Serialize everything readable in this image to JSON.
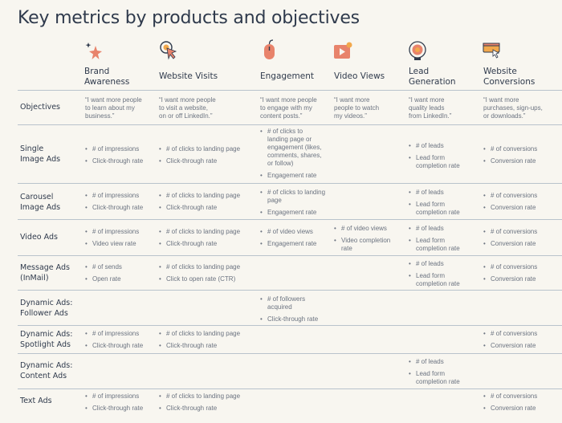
{
  "title": "Key metrics by products and objectives",
  "colors": {
    "text_dark": "#2f3a4c",
    "text_muted": "#6b7380",
    "icon_coral": "#e8836b",
    "icon_orange": "#f2a84c",
    "rule": "#b9c3cc",
    "background": "#f8f6f0"
  },
  "columns": [
    {
      "label": "Brand\nAwareness",
      "icon": "star-sparkle-icon"
    },
    {
      "label": "Website Visits",
      "icon": "cursor-click-icon"
    },
    {
      "label": "Engagement",
      "icon": "mouse-icon"
    },
    {
      "label": "Video Views",
      "icon": "video-play-icon"
    },
    {
      "label": "Lead\nGeneration",
      "icon": "target-icon"
    },
    {
      "label": "Website\nConversions",
      "icon": "browser-cursor-icon"
    }
  ],
  "objectives_row": {
    "label": "Objectives",
    "quotes": [
      "“I want more people\nto learn about my\nbusiness.”",
      "“I want more people\nto visit a website,\non or off LinkedIn.”",
      "“I want more people\nto engage with my\ncontent posts.”",
      "“I want more\npeople to watch\nmy videos.”",
      "“I want more\nquality leads\nfrom LinkedIn.”",
      "“I want more\npurchases, sign-ups,\nor downloads.”"
    ]
  },
  "rows": [
    {
      "label": "Single\nImage Ads",
      "cells": [
        [
          "# of impressions",
          "Click-through rate"
        ],
        [
          "# of clicks to landing page",
          "Click-through rate"
        ],
        [
          "# of clicks to\nlanding page or\nengagement (likes,\ncomments, shares,\nor follow)",
          "Engagement rate"
        ],
        [],
        [
          "# of leads",
          "Lead form\ncompletion rate"
        ],
        [
          "# of conversions",
          "Conversion rate"
        ]
      ]
    },
    {
      "label": "Carousel\nImage Ads",
      "cells": [
        [
          "# of impressions",
          "Click-through rate"
        ],
        [
          "# of clicks to landing page",
          "Click-through rate"
        ],
        [
          "# of clicks to landing\npage",
          "Engagement rate"
        ],
        [],
        [
          "# of leads",
          "Lead form\ncompletion rate"
        ],
        [
          "# of conversions",
          "Conversion rate"
        ]
      ]
    },
    {
      "label": "Video Ads",
      "cells": [
        [
          "# of impressions",
          "Video view rate"
        ],
        [
          "# of clicks to landing page",
          "Click-through rate"
        ],
        [
          "# of video views",
          "Engagement rate"
        ],
        [
          "# of video views",
          "Video completion\nrate"
        ],
        [
          "# of leads",
          "Lead form\ncompletion rate"
        ],
        [
          "# of conversions",
          "Conversion rate"
        ]
      ]
    },
    {
      "label": "Message Ads\n(InMail)",
      "cells": [
        [
          "# of sends",
          "Open rate"
        ],
        [
          "# of clicks to landing page",
          "Click to open rate (CTR)"
        ],
        [],
        [],
        [
          "# of leads",
          "Lead form\ncompletion rate"
        ],
        [
          "# of conversions",
          "Conversion rate"
        ]
      ]
    },
    {
      "label": "Dynamic Ads:\nFollower Ads",
      "cells": [
        [],
        [],
        [
          "# of followers\nacquired",
          "Click-through rate"
        ],
        [],
        [],
        []
      ]
    },
    {
      "label": "Dynamic Ads:\nSpotlight Ads",
      "cells": [
        [
          "# of impressions",
          "Click-through rate"
        ],
        [
          "# of clicks to landing page",
          "Click-through rate"
        ],
        [],
        [],
        [],
        [
          "# of conversions",
          "Conversion rate"
        ]
      ]
    },
    {
      "label": "Dynamic Ads:\nContent Ads",
      "cells": [
        [],
        [],
        [],
        [],
        [
          "# of leads",
          "Lead form\ncompletion rate"
        ],
        []
      ]
    },
    {
      "label": "Text Ads",
      "cells": [
        [
          "# of impressions",
          "Click-through rate"
        ],
        [
          "# of clicks to landing page",
          "Click-through rate"
        ],
        [],
        [],
        [],
        [
          "# of conversions",
          "Conversion rate"
        ]
      ]
    }
  ]
}
